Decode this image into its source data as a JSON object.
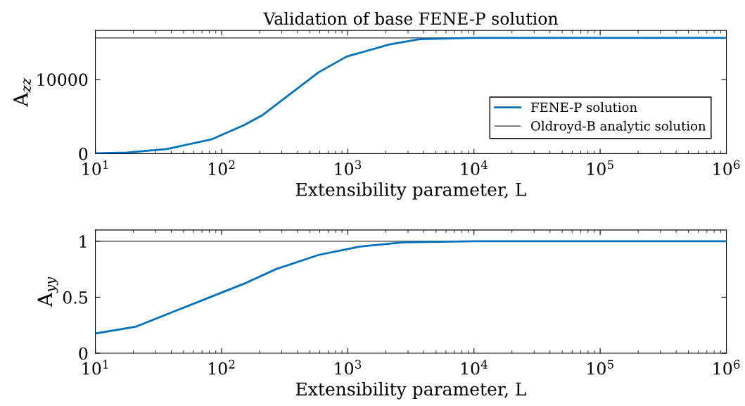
{
  "chart_data": [
    {
      "type": "line",
      "title": "Validation of base FENE-P solution",
      "xlabel": "Extensibility parameter, L",
      "ylabel": "A$_{zz}$",
      "log": "x",
      "xlim": [
        10,
        1000000
      ],
      "xticks": [
        {
          "value": 10,
          "label": "10$^{1}$"
        },
        {
          "value": 100,
          "label": "10$^{2}$"
        },
        {
          "value": 1000,
          "label": "10$^{3}$"
        },
        {
          "value": 10000,
          "label": "10$^{4}$"
        },
        {
          "value": 100000,
          "label": "10$^{5}$"
        },
        {
          "value": 1000000,
          "label": "10$^{6}$"
        }
      ],
      "ylim": [
        0,
        16600
      ],
      "yticks": [
        0,
        10000
      ],
      "grid": false,
      "legend": "bottom right",
      "series": [
        {
          "name": "FENE-P solution",
          "color": "#0072bd",
          "x": [
            10,
            17.7,
            36.6,
            82.8,
            151,
            209,
            351,
            589,
            980,
            2113,
            3720,
            10000,
            1000000
          ],
          "values": [
            40,
            130,
            610,
            1910,
            3850,
            5150,
            8060,
            10970,
            13080,
            14690,
            15440,
            15600,
            15600
          ]
        },
        {
          "name": "Oldroyd-B analytic solution",
          "color": "#333333",
          "x": [
            10,
            1000000
          ],
          "values": [
            15600,
            15600
          ]
        }
      ]
    },
    {
      "type": "line",
      "xlabel": "Extensibility parameter, L",
      "ylabel": "A$_{yy}$",
      "log": "x",
      "xlim": [
        10,
        1000000
      ],
      "xticks": [
        {
          "value": 10,
          "label": "10$^{1}$"
        },
        {
          "value": 100,
          "label": "10$^{2}$"
        },
        {
          "value": 1000,
          "label": "10$^{3}$"
        },
        {
          "value": 10000,
          "label": "10$^{4}$"
        },
        {
          "value": 100000,
          "label": "10$^{5}$"
        },
        {
          "value": 1000000,
          "label": "10$^{6}$"
        }
      ],
      "ylim": [
        0,
        1.1
      ],
      "yticks": [
        0,
        0.5,
        1
      ],
      "grid": false,
      "series": [
        {
          "color": "#0072bd",
          "x": [
            10,
            20.8,
            44.6,
            96.8,
            151,
            269,
            589,
            1260,
            2760,
            10000,
            1000000
          ],
          "values": [
            0.176,
            0.236,
            0.385,
            0.535,
            0.621,
            0.75,
            0.878,
            0.953,
            0.99,
            1.0,
            1.0
          ]
        },
        {
          "color": "#333333",
          "x": [
            10,
            1000000
          ],
          "values": [
            1,
            1
          ]
        }
      ]
    }
  ]
}
